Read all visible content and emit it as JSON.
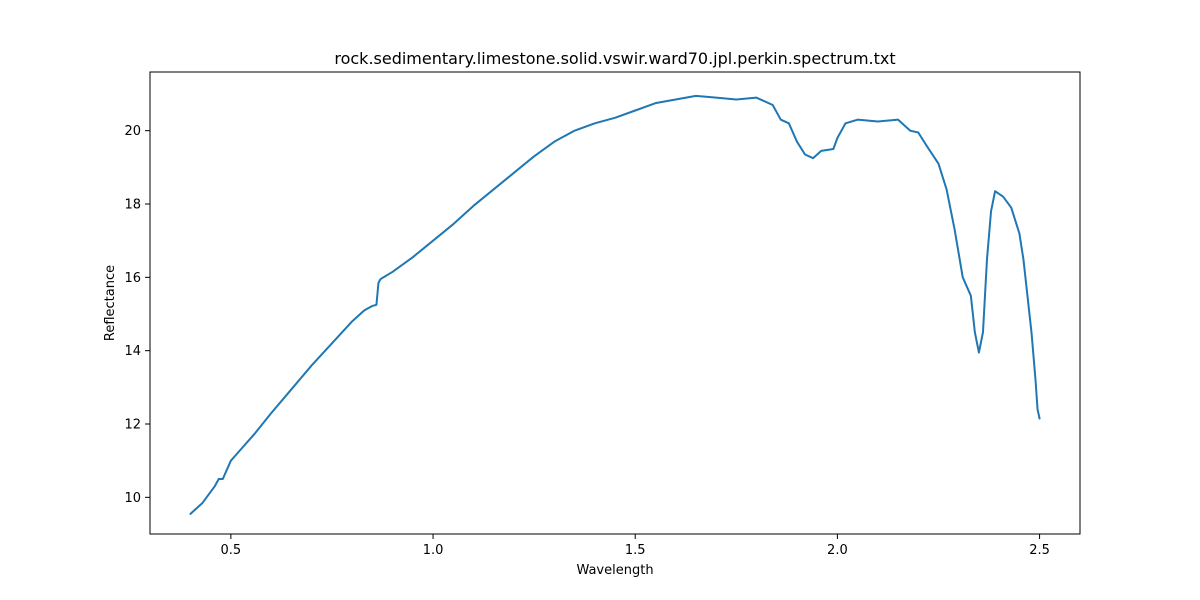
{
  "chart_data": {
    "type": "line",
    "title": "rock.sedimentary.limestone.solid.vswir.ward70.jpl.perkin.spectrum.txt",
    "xlabel": "Wavelength",
    "ylabel": "Reflectance",
    "xlim": [
      0.3,
      2.6
    ],
    "ylim": [
      9.0,
      21.6
    ],
    "xticks": [
      0.5,
      1.0,
      1.5,
      2.0,
      2.5
    ],
    "xtick_labels": [
      "0.5",
      "1.0",
      "1.5",
      "2.0",
      "2.5"
    ],
    "yticks": [
      10,
      12,
      14,
      16,
      18,
      20
    ],
    "ytick_labels": [
      "10",
      "12",
      "14",
      "16",
      "18",
      "20"
    ],
    "grid": false,
    "series": [
      {
        "color": "#1f77b4",
        "x": [
          0.4,
          0.43,
          0.46,
          0.47,
          0.48,
          0.5,
          0.52,
          0.56,
          0.6,
          0.65,
          0.7,
          0.75,
          0.8,
          0.83,
          0.85,
          0.86,
          0.865,
          0.87,
          0.9,
          0.95,
          1.0,
          1.05,
          1.1,
          1.15,
          1.2,
          1.25,
          1.3,
          1.35,
          1.4,
          1.45,
          1.5,
          1.55,
          1.6,
          1.65,
          1.7,
          1.75,
          1.8,
          1.84,
          1.86,
          1.88,
          1.9,
          1.92,
          1.94,
          1.96,
          1.99,
          2.0,
          2.02,
          2.05,
          2.1,
          2.15,
          2.18,
          2.2,
          2.22,
          2.25,
          2.27,
          2.29,
          2.31,
          2.33,
          2.34,
          2.35,
          2.36,
          2.37,
          2.38,
          2.39,
          2.41,
          2.43,
          2.45,
          2.46,
          2.47,
          2.48,
          2.49,
          2.495,
          2.5
        ],
        "y": [
          9.55,
          9.85,
          10.3,
          10.5,
          10.5,
          11.0,
          11.25,
          11.75,
          12.3,
          12.95,
          13.6,
          14.2,
          14.8,
          15.1,
          15.22,
          15.25,
          15.85,
          15.95,
          16.15,
          16.55,
          17.0,
          17.45,
          17.95,
          18.4,
          18.85,
          19.3,
          19.7,
          20.0,
          20.2,
          20.35,
          20.55,
          20.75,
          20.85,
          20.95,
          20.9,
          20.85,
          20.9,
          20.7,
          20.3,
          20.2,
          19.7,
          19.35,
          19.25,
          19.45,
          19.5,
          19.8,
          20.2,
          20.3,
          20.25,
          20.3,
          20.0,
          19.95,
          19.6,
          19.1,
          18.4,
          17.3,
          16.0,
          15.5,
          14.5,
          13.95,
          14.5,
          16.5,
          17.8,
          18.35,
          18.2,
          17.9,
          17.2,
          16.5,
          15.5,
          14.5,
          13.2,
          12.4,
          12.15
        ]
      }
    ]
  }
}
